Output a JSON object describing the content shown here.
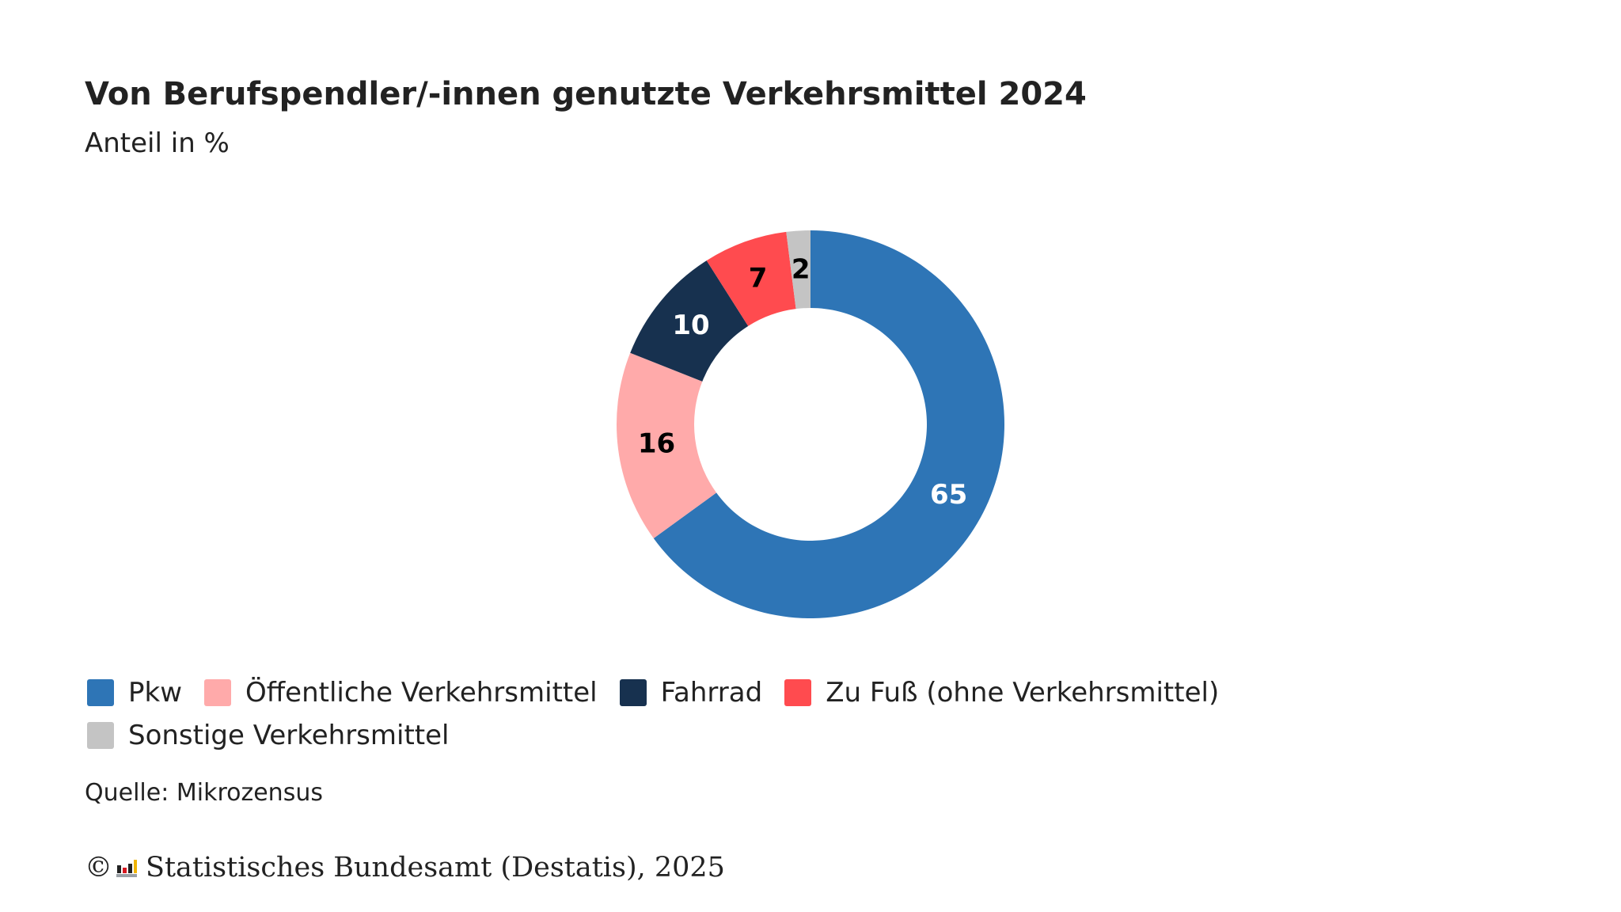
{
  "header": {
    "title": "Von Berufspendler/-innen genutzte Verkehrsmittel 2024",
    "subtitle": "Anteil in %"
  },
  "chart_data": {
    "type": "pie",
    "variant": "donut",
    "title": "Von Berufspendler/-innen genutzte Verkehrsmittel 2024",
    "subtitle": "Anteil in %",
    "legend_position": "bottom-left",
    "slices": [
      {
        "label": "Pkw",
        "value": 65,
        "color": "#2e75b6",
        "text_color": "#ffffff"
      },
      {
        "label": "Öffentliche Verkehrsmittel",
        "value": 16,
        "color": "#ffaaaa",
        "text_color": "#000000"
      },
      {
        "label": "Fahrrad",
        "value": 10,
        "color": "#17314f",
        "text_color": "#ffffff"
      },
      {
        "label": "Zu Fuß (ohne Verkehrsmittel)",
        "value": 7,
        "color": "#ff4b4f",
        "text_color": "#000000"
      },
      {
        "label": "Sonstige Verkehrsmittel",
        "value": 2,
        "color": "#c4c4c4",
        "text_color": "#000000"
      }
    ]
  },
  "footer": {
    "source": "Quelle: Mikrozensus",
    "copyright_symbol": "©",
    "copyright_text": "Statistisches Bundesamt (Destatis), 2025",
    "logo_icon": "destatis-bar-logo-icon"
  }
}
